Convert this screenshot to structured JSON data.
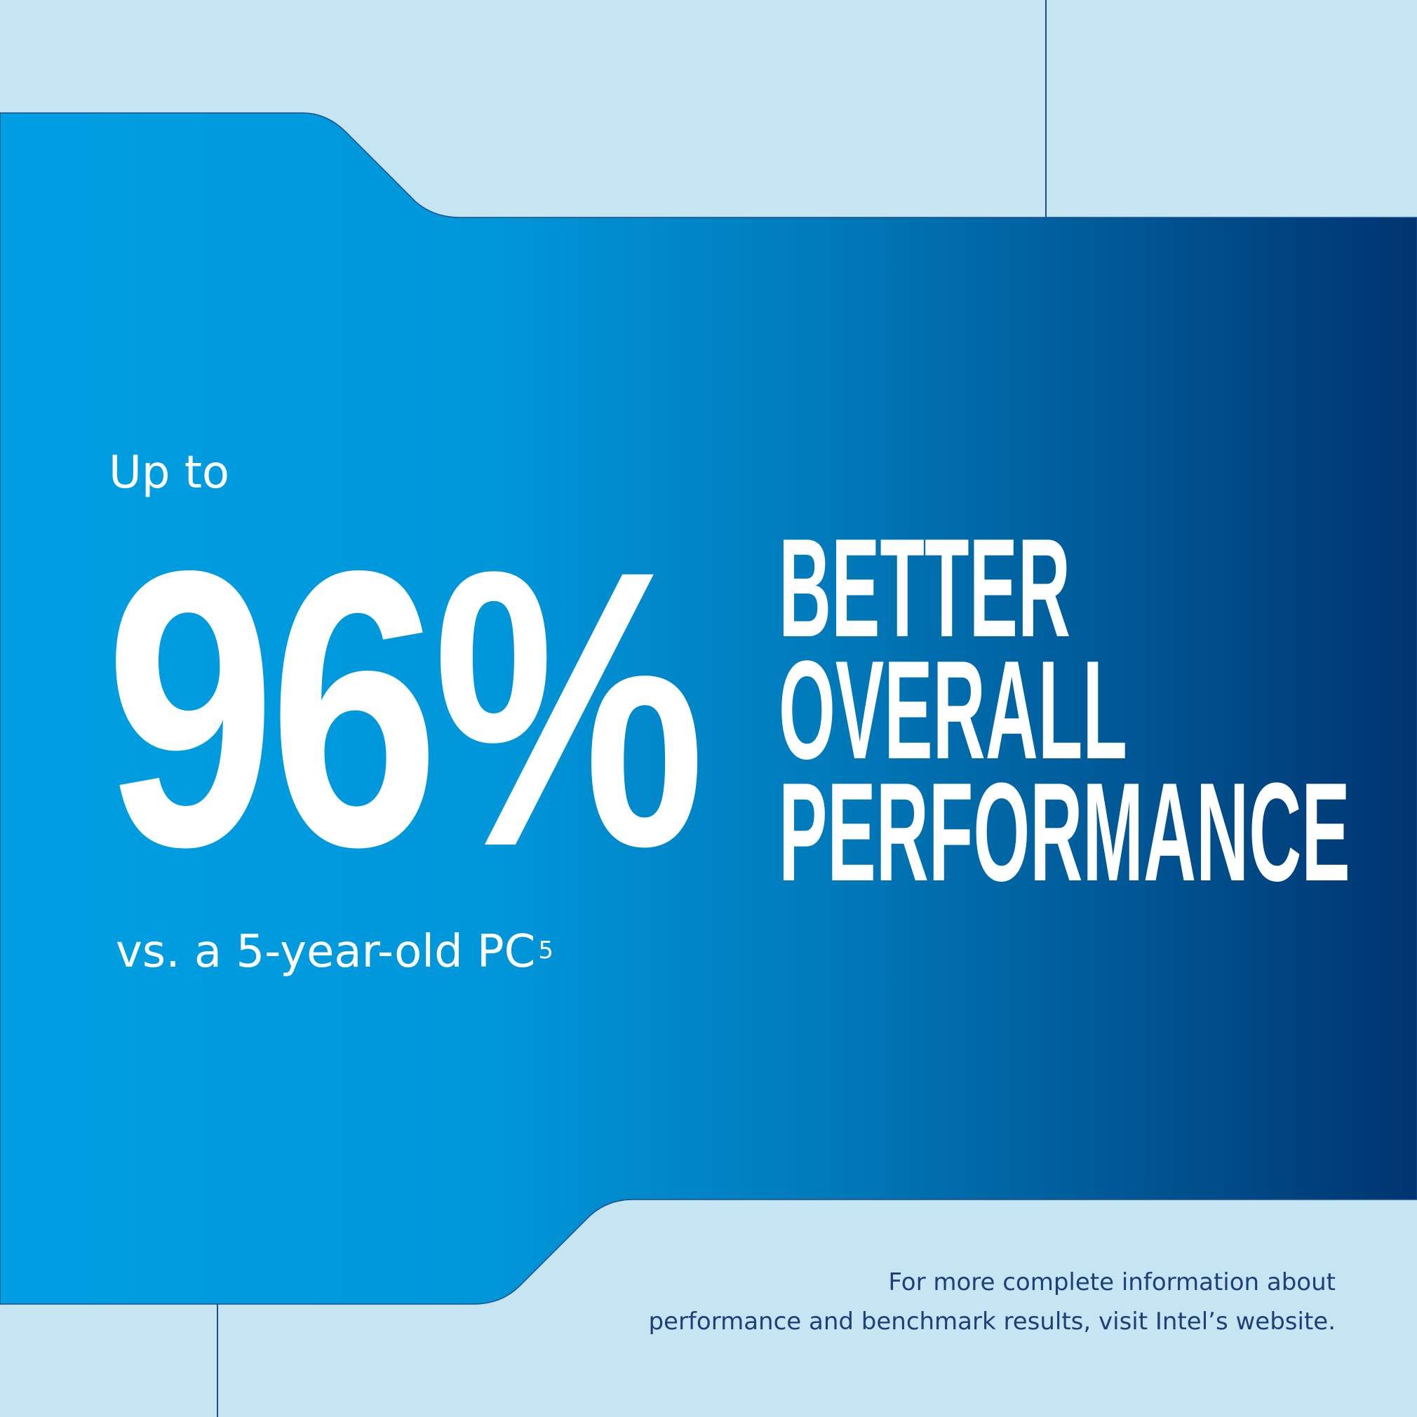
{
  "colors": {
    "background": "#c4e5f1",
    "gradient_start": "#009fe3",
    "gradient_end": "#003470",
    "line": "#1b4f8f",
    "footer_text": "#1d3f7a"
  },
  "intro": "Up to",
  "stat": "96%",
  "headline": {
    "line1": "BETTER",
    "line2": "OVERALL",
    "line3": "PERFORMANCE"
  },
  "comparison": {
    "text": "vs. a 5-year-old PC",
    "footnote": "5"
  },
  "footer": {
    "line1": "For more complete information about",
    "line2": "performance and benchmark results, visit Intel’s website."
  }
}
